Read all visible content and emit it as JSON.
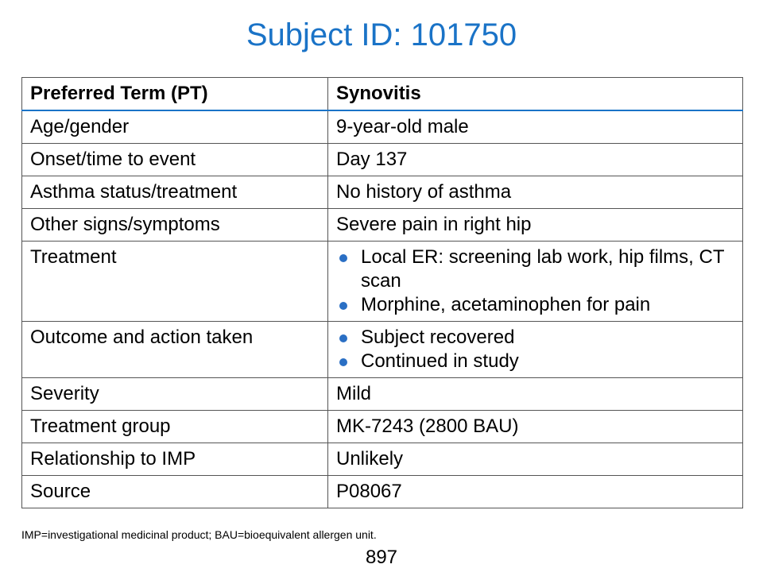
{
  "title": "Subject ID: 101750",
  "table": {
    "header": {
      "label": "Preferred Term (PT)",
      "value": "Synovitis"
    },
    "rows": [
      {
        "label": "Age/gender",
        "value": "9-year-old male"
      },
      {
        "label": "Onset/time to event",
        "value": "Day 137"
      },
      {
        "label": "Asthma status/treatment",
        "value": "No history of asthma"
      },
      {
        "label": "Other signs/symptoms",
        "value": "Severe pain in right hip"
      },
      {
        "label": "Treatment",
        "bullets": [
          "Local ER: screening lab work, hip films, CT scan",
          "Morphine, acetaminophen for pain"
        ]
      },
      {
        "label": "Outcome and action taken",
        "bullets": [
          "Subject recovered",
          "Continued in study"
        ]
      },
      {
        "label": "Severity",
        "value": "Mild"
      },
      {
        "label": "Treatment group",
        "value": "MK-7243 (2800 BAU)"
      },
      {
        "label": "Relationship to IMP",
        "value": "Unlikely"
      },
      {
        "label": "Source",
        "value": "P08067"
      }
    ]
  },
  "footnote": "IMP=investigational medicinal product; BAU=bioequivalent allergen unit.",
  "page_number": "897",
  "colors": {
    "title": "#1a73c7",
    "bullet": "#2a6fc4",
    "header_rule": "#1a73c7"
  }
}
